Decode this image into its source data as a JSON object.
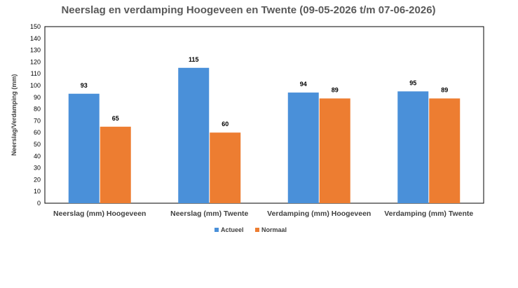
{
  "chart_data": {
    "type": "bar",
    "title": "Neerslag en verdamping Hoogeveen en Twente (09-05-2026 t/m 07-06-2026)",
    "ylabel": "Neerslag/Verdamping (mm)",
    "xlabel": "",
    "ylim": [
      0,
      150
    ],
    "ytick_step": 10,
    "grid": false,
    "legend_position": "bottom",
    "categories": [
      "Neerslag (mm) Hoogeveen",
      "Neerslag (mm) Twente",
      "Verdamping (mm) Hoogeveen",
      "Verdamping (mm) Twente"
    ],
    "series": [
      {
        "name": "Actueel",
        "color": "#4a90d9",
        "values": [
          93,
          115,
          94,
          95
        ]
      },
      {
        "name": "Normaal",
        "color": "#ed7d31",
        "values": [
          65,
          60,
          89,
          89
        ]
      }
    ]
  }
}
